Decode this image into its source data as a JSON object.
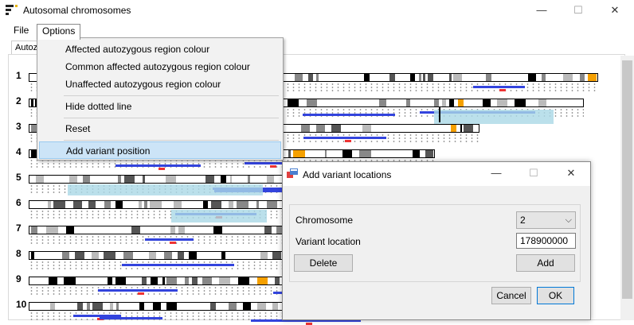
{
  "window": {
    "title": "Autosomal chromosomes",
    "min_glyph": "—",
    "max_glyph": "☐",
    "close_glyph": "✕"
  },
  "menu": {
    "file": "File",
    "options": "Options"
  },
  "tab": {
    "label": "Autoz"
  },
  "options_menu": {
    "affected": "Affected autozygous region colour",
    "common": "Common affected autozygous region colour",
    "unaffected": "Unaffected autozygous region colour",
    "hide_dotted": "Hide dotted line",
    "reset": "Reset",
    "add_variant": "Add variant position"
  },
  "chromosomes": [
    "1",
    "2",
    "3",
    "4",
    "5",
    "6",
    "7",
    "8",
    "9",
    "10"
  ],
  "dialog": {
    "title": "Add variant locations",
    "min_glyph": "—",
    "max_glyph": "☐",
    "close_glyph": "✕",
    "chromosome_label": "Chromosome",
    "chromosome_value": "2",
    "chevron": "⌵",
    "variant_label": "Variant location",
    "variant_value": "178900000",
    "delete": "Delete",
    "add": "Add",
    "cancel": "Cancel",
    "ok": "OK"
  },
  "colors": {
    "affected": "#3344dd",
    "common": "#aad8e6",
    "unaffected": "#ee3333",
    "band_orange": "#f5a000"
  }
}
